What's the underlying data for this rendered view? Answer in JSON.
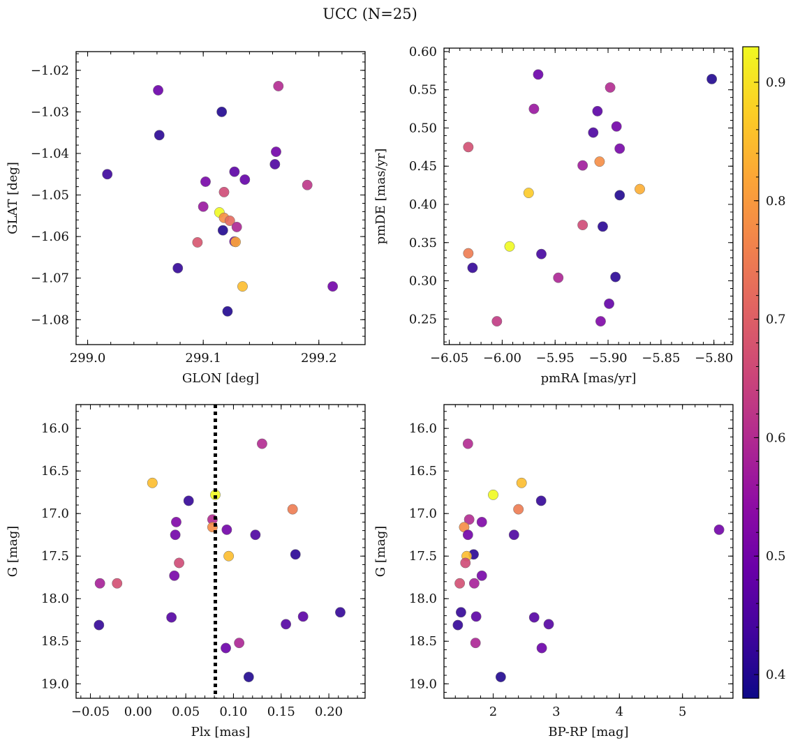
{
  "figure": {
    "title": "UCC (N=25)"
  },
  "colorbar": {
    "vmin": 0.38,
    "vmax": 0.93,
    "ticks": [
      0.4,
      0.5,
      0.6,
      0.7,
      0.8,
      0.9
    ],
    "tick_labels": [
      "0.4",
      "0.5",
      "0.6",
      "0.7",
      "0.8",
      "0.9"
    ],
    "colormap": "plasma",
    "colormap_stops": [
      "#0d0887",
      "#41049d",
      "#6a00a8",
      "#8f0da4",
      "#b12a90",
      "#cc4778",
      "#e16462",
      "#f2844b",
      "#fca636",
      "#fcce25",
      "#f0f921"
    ]
  },
  "chart_data": [
    {
      "type": "scatter",
      "id": "sky",
      "xlabel": "GLON [deg]",
      "ylabel": "GLAT [deg]",
      "xlim": [
        298.99,
        299.24
      ],
      "ylim": [
        -1.086,
        -1.0155
      ],
      "y_inverted": false,
      "xticks": [
        299.0,
        299.1,
        299.2
      ],
      "xtick_labels": [
        "299.0",
        "299.1",
        "299.2"
      ],
      "yticks": [
        -1.08,
        -1.07,
        -1.06,
        -1.05,
        -1.04,
        -1.03,
        -1.02
      ],
      "ytick_labels": [
        "−1.08",
        "−1.07",
        "−1.06",
        "−1.05",
        "−1.04",
        "−1.03",
        "−1.02"
      ],
      "x_minor_step": 0.02,
      "y_minor_step": 0.002,
      "points": [
        {
          "x": 299.061,
          "y": -1.0248,
          "c": 0.49
        },
        {
          "x": 299.165,
          "y": -1.0238,
          "c": 0.6
        },
        {
          "x": 299.116,
          "y": -1.03,
          "c": 0.4
        },
        {
          "x": 299.062,
          "y": -1.0356,
          "c": 0.41
        },
        {
          "x": 299.163,
          "y": -1.0396,
          "c": 0.5
        },
        {
          "x": 299.162,
          "y": -1.0426,
          "c": 0.45
        },
        {
          "x": 299.127,
          "y": -1.0444,
          "c": 0.47
        },
        {
          "x": 299.017,
          "y": -1.045,
          "c": 0.43
        },
        {
          "x": 299.136,
          "y": -1.0463,
          "c": 0.48
        },
        {
          "x": 299.102,
          "y": -1.0468,
          "c": 0.51
        },
        {
          "x": 299.19,
          "y": -1.0476,
          "c": 0.62
        },
        {
          "x": 299.118,
          "y": -1.0493,
          "c": 0.66
        },
        {
          "x": 299.1,
          "y": -1.0528,
          "c": 0.56
        },
        {
          "x": 299.114,
          "y": -1.0542,
          "c": 0.93
        },
        {
          "x": 299.118,
          "y": -1.0555,
          "c": 0.78
        },
        {
          "x": 299.123,
          "y": -1.0562,
          "c": 0.72
        },
        {
          "x": 299.129,
          "y": -1.0577,
          "c": 0.59
        },
        {
          "x": 299.117,
          "y": -1.0585,
          "c": 0.4
        },
        {
          "x": 299.095,
          "y": -1.0614,
          "c": 0.68
        },
        {
          "x": 299.127,
          "y": -1.0612,
          "c": 0.52
        },
        {
          "x": 299.128,
          "y": -1.0613,
          "c": 0.82
        },
        {
          "x": 299.078,
          "y": -1.0676,
          "c": 0.42
        },
        {
          "x": 299.134,
          "y": -1.072,
          "c": 0.85
        },
        {
          "x": 299.212,
          "y": -1.072,
          "c": 0.5
        },
        {
          "x": 299.121,
          "y": -1.078,
          "c": 0.4
        }
      ]
    },
    {
      "type": "scatter",
      "id": "pm",
      "xlabel": "pmRA [mas/yr]",
      "ylabel": "pmDE [mas/yr]",
      "xlim": [
        -6.055,
        -5.782
      ],
      "ylim": [
        0.2165,
        0.6045
      ],
      "y_inverted": false,
      "xticks": [
        -6.05,
        -6.0,
        -5.95,
        -5.9,
        -5.85,
        -5.8
      ],
      "xtick_labels": [
        "−6.05",
        "−6.00",
        "−5.95",
        "−5.90",
        "−5.85",
        "−5.80"
      ],
      "yticks": [
        0.25,
        0.3,
        0.35,
        0.4,
        0.45,
        0.5,
        0.55,
        0.6
      ],
      "ytick_labels": [
        "0.25",
        "0.30",
        "0.35",
        "0.40",
        "0.45",
        "0.50",
        "0.55",
        "0.60"
      ],
      "x_minor_step": 0.01,
      "y_minor_step": 0.01,
      "points": [
        {
          "x": -5.966,
          "y": 0.57,
          "c": 0.49
        },
        {
          "x": -5.802,
          "y": 0.564,
          "c": 0.4
        },
        {
          "x": -5.898,
          "y": 0.553,
          "c": 0.6
        },
        {
          "x": -5.97,
          "y": 0.525,
          "c": 0.56
        },
        {
          "x": -5.91,
          "y": 0.522,
          "c": 0.47
        },
        {
          "x": -5.892,
          "y": 0.502,
          "c": 0.5
        },
        {
          "x": -5.914,
          "y": 0.494,
          "c": 0.45
        },
        {
          "x": -6.032,
          "y": 0.475,
          "c": 0.67
        },
        {
          "x": -5.889,
          "y": 0.473,
          "c": 0.51
        },
        {
          "x": -5.908,
          "y": 0.456,
          "c": 0.78
        },
        {
          "x": -5.924,
          "y": 0.451,
          "c": 0.57
        },
        {
          "x": -5.87,
          "y": 0.42,
          "c": 0.83
        },
        {
          "x": -5.975,
          "y": 0.415,
          "c": 0.87
        },
        {
          "x": -5.889,
          "y": 0.412,
          "c": 0.4
        },
        {
          "x": -5.924,
          "y": 0.373,
          "c": 0.66
        },
        {
          "x": -5.905,
          "y": 0.371,
          "c": 0.41
        },
        {
          "x": -5.993,
          "y": 0.345,
          "c": 0.93
        },
        {
          "x": -6.032,
          "y": 0.336,
          "c": 0.75
        },
        {
          "x": -5.963,
          "y": 0.335,
          "c": 0.44
        },
        {
          "x": -6.028,
          "y": 0.317,
          "c": 0.42
        },
        {
          "x": -5.947,
          "y": 0.304,
          "c": 0.59
        },
        {
          "x": -5.893,
          "y": 0.305,
          "c": 0.41
        },
        {
          "x": -5.899,
          "y": 0.27,
          "c": 0.48
        },
        {
          "x": -6.005,
          "y": 0.247,
          "c": 0.63
        },
        {
          "x": -5.907,
          "y": 0.247,
          "c": 0.52
        }
      ]
    },
    {
      "type": "scatter",
      "id": "plx",
      "xlabel": "Plx [mas]",
      "ylabel": "G [mag]",
      "xlim": [
        -0.065,
        0.238
      ],
      "ylim": [
        15.72,
        19.17
      ],
      "y_inverted": true,
      "xticks": [
        -0.05,
        0.0,
        0.05,
        0.1,
        0.15,
        0.2
      ],
      "xtick_labels": [
        "−0.05",
        "0.00",
        "0.05",
        "0.10",
        "0.15",
        "0.20"
      ],
      "yticks": [
        16.0,
        16.5,
        17.0,
        17.5,
        18.0,
        18.5,
        19.0
      ],
      "ytick_labels": [
        "16.0",
        "16.5",
        "17.0",
        "17.5",
        "18.0",
        "18.5",
        "19.0"
      ],
      "x_minor_step": 0.01,
      "y_minor_step": 0.1,
      "vline": 0.081,
      "points": [
        {
          "x": 0.13,
          "y": 16.18,
          "c": 0.6
        },
        {
          "x": 0.015,
          "y": 16.64,
          "c": 0.85
        },
        {
          "x": 0.081,
          "y": 16.78,
          "c": 0.93
        },
        {
          "x": 0.053,
          "y": 16.85,
          "c": 0.42
        },
        {
          "x": 0.162,
          "y": 16.95,
          "c": 0.75
        },
        {
          "x": 0.078,
          "y": 17.07,
          "c": 0.6
        },
        {
          "x": 0.04,
          "y": 17.1,
          "c": 0.52
        },
        {
          "x": 0.078,
          "y": 17.16,
          "c": 0.78
        },
        {
          "x": 0.093,
          "y": 17.19,
          "c": 0.5
        },
        {
          "x": 0.039,
          "y": 17.25,
          "c": 0.5
        },
        {
          "x": 0.123,
          "y": 17.25,
          "c": 0.45
        },
        {
          "x": 0.165,
          "y": 17.48,
          "c": 0.41
        },
        {
          "x": 0.095,
          "y": 17.5,
          "c": 0.85
        },
        {
          "x": 0.043,
          "y": 17.58,
          "c": 0.66
        },
        {
          "x": 0.038,
          "y": 17.73,
          "c": 0.51
        },
        {
          "x": -0.04,
          "y": 17.82,
          "c": 0.58
        },
        {
          "x": -0.022,
          "y": 17.82,
          "c": 0.67
        },
        {
          "x": 0.212,
          "y": 18.16,
          "c": 0.42
        },
        {
          "x": 0.173,
          "y": 18.21,
          "c": 0.47
        },
        {
          "x": 0.035,
          "y": 18.22,
          "c": 0.46
        },
        {
          "x": -0.041,
          "y": 18.31,
          "c": 0.42
        },
        {
          "x": 0.155,
          "y": 18.3,
          "c": 0.46
        },
        {
          "x": 0.106,
          "y": 18.52,
          "c": 0.59
        },
        {
          "x": 0.092,
          "y": 18.58,
          "c": 0.49
        },
        {
          "x": 0.116,
          "y": 18.92,
          "c": 0.4
        }
      ]
    },
    {
      "type": "scatter",
      "id": "cmd",
      "xlabel": "BP-RP [mag]",
      "ylabel": "G [mag]",
      "xlim": [
        1.22,
        5.8
      ],
      "ylim": [
        15.72,
        19.17
      ],
      "y_inverted": true,
      "xticks": [
        2,
        3,
        4,
        5
      ],
      "xtick_labels": [
        "2",
        "3",
        "4",
        "5"
      ],
      "yticks": [
        16.0,
        16.5,
        17.0,
        17.5,
        18.0,
        18.5,
        19.0
      ],
      "ytick_labels": [
        "16.0",
        "16.5",
        "17.0",
        "17.5",
        "18.0",
        "18.5",
        "19.0"
      ],
      "x_minor_step": 0.2,
      "y_minor_step": 0.1,
      "points": [
        {
          "x": 1.6,
          "y": 16.18,
          "c": 0.6
        },
        {
          "x": 2.45,
          "y": 16.64,
          "c": 0.85
        },
        {
          "x": 2.0,
          "y": 16.78,
          "c": 0.93
        },
        {
          "x": 2.76,
          "y": 16.85,
          "c": 0.42
        },
        {
          "x": 2.4,
          "y": 16.95,
          "c": 0.75
        },
        {
          "x": 1.62,
          "y": 17.07,
          "c": 0.6
        },
        {
          "x": 1.82,
          "y": 17.1,
          "c": 0.52
        },
        {
          "x": 1.54,
          "y": 17.16,
          "c": 0.78
        },
        {
          "x": 5.58,
          "y": 17.19,
          "c": 0.5
        },
        {
          "x": 1.6,
          "y": 17.25,
          "c": 0.5
        },
        {
          "x": 2.33,
          "y": 17.25,
          "c": 0.45
        },
        {
          "x": 1.69,
          "y": 17.48,
          "c": 0.41
        },
        {
          "x": 1.58,
          "y": 17.5,
          "c": 0.85
        },
        {
          "x": 1.56,
          "y": 17.58,
          "c": 0.66
        },
        {
          "x": 1.82,
          "y": 17.73,
          "c": 0.51
        },
        {
          "x": 1.7,
          "y": 17.82,
          "c": 0.58
        },
        {
          "x": 1.47,
          "y": 17.82,
          "c": 0.67
        },
        {
          "x": 1.49,
          "y": 18.16,
          "c": 0.42
        },
        {
          "x": 1.73,
          "y": 18.21,
          "c": 0.47
        },
        {
          "x": 2.65,
          "y": 18.22,
          "c": 0.46
        },
        {
          "x": 1.44,
          "y": 18.31,
          "c": 0.42
        },
        {
          "x": 2.88,
          "y": 18.3,
          "c": 0.46
        },
        {
          "x": 1.72,
          "y": 18.52,
          "c": 0.59
        },
        {
          "x": 2.77,
          "y": 18.58,
          "c": 0.49
        },
        {
          "x": 2.12,
          "y": 18.92,
          "c": 0.4
        }
      ]
    }
  ]
}
